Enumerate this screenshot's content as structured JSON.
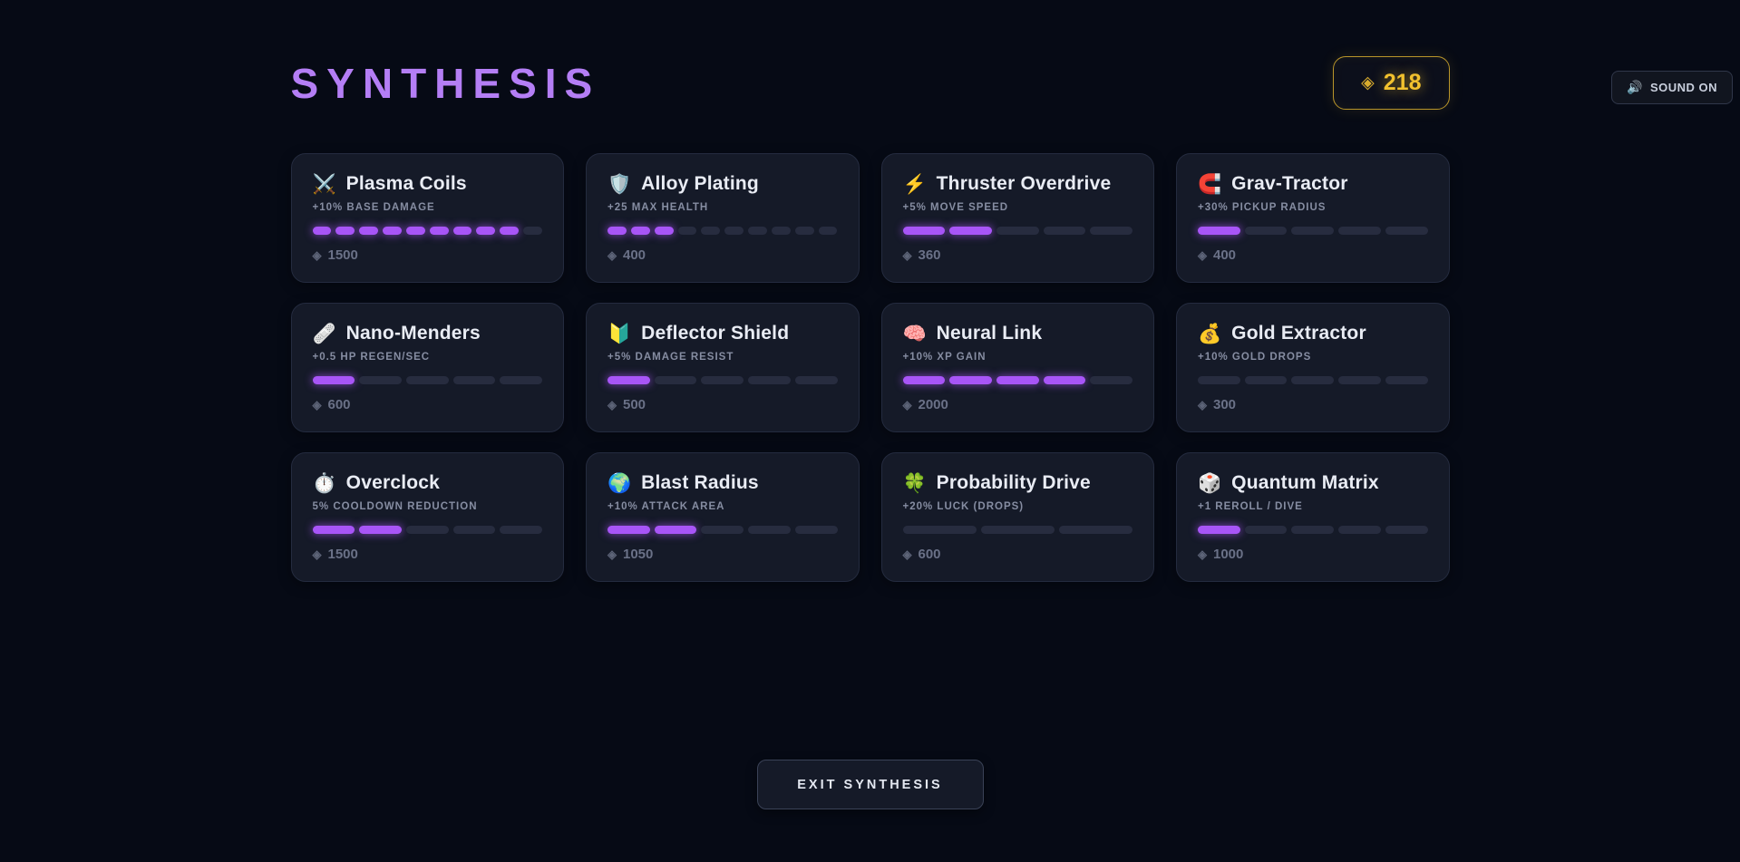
{
  "colors": {
    "accent_purple": "#a855f7",
    "title_purple": "#b47ef5",
    "gold": "#f2c12e",
    "card_bg": "#151a28",
    "page_bg": "#060a15"
  },
  "sound": {
    "icon": "🔊",
    "label": "SOUND ON"
  },
  "header": {
    "title": "SYNTHESIS",
    "currency": {
      "icon": "◈",
      "amount": "218"
    }
  },
  "icons": {
    "cost_diamond": "◈"
  },
  "upgrades": [
    {
      "icon": "⚔️",
      "icon_name": "crossed-swords-icon",
      "name": "Plasma Coils",
      "effect": "+10% BASE DAMAGE",
      "level": 9,
      "max_level": 10,
      "cost": "1500"
    },
    {
      "icon": "🛡️",
      "icon_name": "shield-icon",
      "name": "Alloy Plating",
      "effect": "+25 MAX HEALTH",
      "level": 3,
      "max_level": 10,
      "cost": "400"
    },
    {
      "icon": "⚡",
      "icon_name": "lightning-icon",
      "name": "Thruster Overdrive",
      "effect": "+5% MOVE SPEED",
      "level": 2,
      "max_level": 5,
      "cost": "360"
    },
    {
      "icon": "🧲",
      "icon_name": "magnet-icon",
      "name": "Grav-Tractor",
      "effect": "+30% PICKUP RADIUS",
      "level": 1,
      "max_level": 5,
      "cost": "400"
    },
    {
      "icon": "🩹",
      "icon_name": "bandage-icon",
      "name": "Nano-Menders",
      "effect": "+0.5 HP REGEN/SEC",
      "level": 1,
      "max_level": 5,
      "cost": "600"
    },
    {
      "icon": "🔰",
      "icon_name": "beginner-shield-icon",
      "name": "Deflector Shield",
      "effect": "+5% DAMAGE RESIST",
      "level": 1,
      "max_level": 5,
      "cost": "500"
    },
    {
      "icon": "🧠",
      "icon_name": "brain-icon",
      "name": "Neural Link",
      "effect": "+10% XP GAIN",
      "level": 4,
      "max_level": 5,
      "cost": "2000"
    },
    {
      "icon": "💰",
      "icon_name": "money-bag-icon",
      "name": "Gold Extractor",
      "effect": "+10% GOLD DROPS",
      "level": 0,
      "max_level": 5,
      "cost": "300"
    },
    {
      "icon": "⏱️",
      "icon_name": "stopwatch-icon",
      "name": "Overclock",
      "effect": "5% COOLDOWN REDUCTION",
      "level": 2,
      "max_level": 5,
      "cost": "1500"
    },
    {
      "icon": "🌍",
      "icon_name": "globe-icon",
      "name": "Blast Radius",
      "effect": "+10% ATTACK AREA",
      "level": 2,
      "max_level": 5,
      "cost": "1050"
    },
    {
      "icon": "🍀",
      "icon_name": "clover-icon",
      "name": "Probability Drive",
      "effect": "+20% LUCK (DROPS)",
      "level": 0,
      "max_level": 3,
      "cost": "600"
    },
    {
      "icon": "🎲",
      "icon_name": "dice-icon",
      "name": "Quantum Matrix",
      "effect": "+1 REROLL / DIVE",
      "level": 1,
      "max_level": 5,
      "cost": "1000"
    }
  ],
  "footer": {
    "exit_label": "EXIT SYNTHESIS"
  }
}
